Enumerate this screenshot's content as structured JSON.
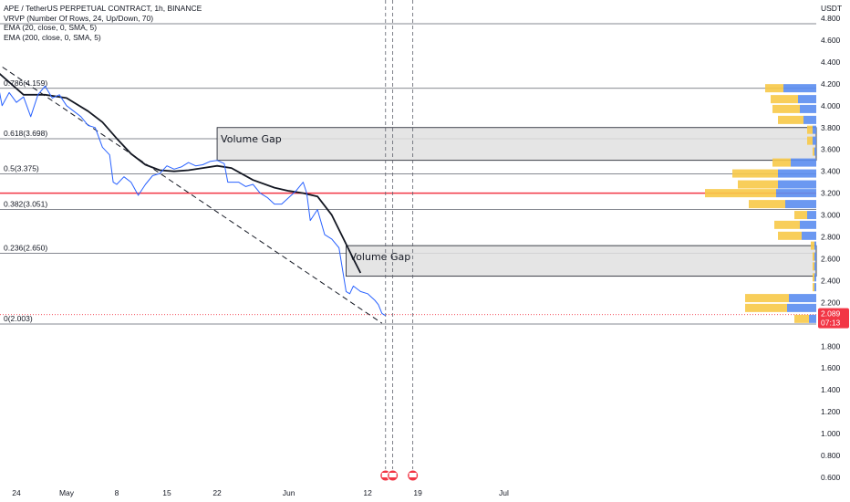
{
  "legend": {
    "line0": "APE / TetherUS PERPETUAL CONTRACT, 1h, BINANCE",
    "line1": "VRVP (Number Of Rows, 24, Up/Down, 70)",
    "line2": "EMA (20, close, 0, SMA, 5)",
    "line3": "EMA (200, close, 0, SMA, 5)"
  },
  "currency": "USDT",
  "price_tag": {
    "price": "2.089",
    "countdown": "07:13",
    "color": "#f23645"
  },
  "chart_data": {
    "type": "line",
    "title": "APE / TetherUS PERPETUAL CONTRACT, 1h, BINANCE",
    "y_ticks": [
      "4.800",
      "4.600",
      "4.400",
      "4.200",
      "4.000",
      "3.800",
      "3.600",
      "3.400",
      "3.200",
      "3.000",
      "2.800",
      "2.600",
      "2.400",
      "2.200",
      "2.000",
      "1.800",
      "1.600",
      "1.400",
      "1.200",
      "1.000",
      "0.800",
      "0.600"
    ],
    "y_tick_values": [
      4.8,
      4.6,
      4.4,
      4.2,
      4.0,
      3.8,
      3.6,
      3.4,
      3.2,
      3.0,
      2.8,
      2.6,
      2.4,
      2.2,
      2.0,
      1.8,
      1.6,
      1.4,
      1.2,
      1.0,
      0.8,
      0.6
    ],
    "ylim": [
      0.6,
      4.85
    ],
    "x_ticks": [
      "24",
      "May",
      "8",
      "15",
      "22",
      "Jun",
      "12",
      "19",
      "Jul"
    ],
    "x_tick_days": [
      -7,
      0,
      7,
      14,
      21,
      31,
      42,
      49,
      61
    ],
    "xlim": [
      -10,
      92
    ],
    "fib_levels": [
      {
        "label": "0.786(4.159)",
        "value": 4.159
      },
      {
        "label": "0.618(3.698)",
        "value": 3.698
      },
      {
        "label": "0.5(3.375)",
        "value": 3.375
      },
      {
        "label": "0.382(3.051)",
        "value": 3.051
      },
      {
        "label": "0.236(2.650)",
        "value": 2.65
      },
      {
        "label": "0(2.003)",
        "value": 2.003
      }
    ],
    "extra_hline": 4.75,
    "red_line": 3.2,
    "current_price": 2.089,
    "volume_gaps": [
      {
        "label": "Volume Gap",
        "day_start": 21,
        "top": 3.8,
        "bottom": 3.5
      },
      {
        "label": "Volume Gap",
        "day_start": 39,
        "top": 2.72,
        "bottom": 2.44
      }
    ],
    "event_days": [
      44.5,
      45.5,
      48.3
    ],
    "trendline": [
      {
        "day": -10,
        "price": 4.4
      },
      {
        "day": 44,
        "price": 2.01
      }
    ],
    "series": [
      {
        "name": "EMA (20, close, 0, SMA, 5)",
        "color": "#131722",
        "points": [
          [
            -10,
            4.33
          ],
          [
            -6,
            4.1
          ],
          [
            -3,
            4.1
          ],
          [
            0,
            4.07
          ],
          [
            3,
            3.95
          ],
          [
            5,
            3.85
          ],
          [
            7,
            3.7
          ],
          [
            9,
            3.56
          ],
          [
            11,
            3.46
          ],
          [
            13,
            3.41
          ],
          [
            15,
            3.4
          ],
          [
            17,
            3.41
          ],
          [
            19,
            3.43
          ],
          [
            21,
            3.45
          ],
          [
            23,
            3.43
          ],
          [
            26,
            3.32
          ],
          [
            29,
            3.25
          ],
          [
            31,
            3.22
          ],
          [
            33,
            3.2
          ],
          [
            35,
            3.17
          ],
          [
            37,
            3.0
          ],
          [
            38.5,
            2.8
          ],
          [
            40,
            2.6
          ],
          [
            41,
            2.47
          ]
        ]
      },
      {
        "name": "price",
        "color": "#2962ff",
        "points": [
          [
            -10,
            4.35
          ],
          [
            -9,
            4.0
          ],
          [
            -8,
            4.12
          ],
          [
            -7,
            4.03
          ],
          [
            -6,
            4.08
          ],
          [
            -5,
            3.9
          ],
          [
            -4,
            4.1
          ],
          [
            -3,
            4.18
          ],
          [
            -2,
            4.07
          ],
          [
            -1,
            4.1
          ],
          [
            0,
            4.0
          ],
          [
            1,
            3.95
          ],
          [
            2,
            3.9
          ],
          [
            3,
            3.82
          ],
          [
            4,
            3.8
          ],
          [
            5,
            3.62
          ],
          [
            6,
            3.55
          ],
          [
            6.5,
            3.3
          ],
          [
            7,
            3.28
          ],
          [
            8,
            3.35
          ],
          [
            9,
            3.3
          ],
          [
            10,
            3.18
          ],
          [
            11,
            3.28
          ],
          [
            12,
            3.36
          ],
          [
            13,
            3.38
          ],
          [
            14,
            3.45
          ],
          [
            15,
            3.42
          ],
          [
            16,
            3.44
          ],
          [
            17,
            3.48
          ],
          [
            18,
            3.45
          ],
          [
            19,
            3.46
          ],
          [
            20,
            3.49
          ],
          [
            21,
            3.5
          ],
          [
            22,
            3.47
          ],
          [
            22.5,
            3.3
          ],
          [
            23,
            3.3
          ],
          [
            24,
            3.3
          ],
          [
            25,
            3.26
          ],
          [
            26,
            3.28
          ],
          [
            27,
            3.2
          ],
          [
            28,
            3.16
          ],
          [
            29,
            3.1
          ],
          [
            30,
            3.1
          ],
          [
            31,
            3.16
          ],
          [
            32,
            3.22
          ],
          [
            33,
            3.3
          ],
          [
            33.5,
            3.2
          ],
          [
            34,
            2.95
          ],
          [
            35,
            3.05
          ],
          [
            36,
            2.82
          ],
          [
            37,
            2.78
          ],
          [
            38,
            2.7
          ],
          [
            38.5,
            2.5
          ],
          [
            39,
            2.3
          ],
          [
            39.5,
            2.28
          ],
          [
            40,
            2.35
          ],
          [
            41,
            2.3
          ],
          [
            42,
            2.28
          ],
          [
            43,
            2.22
          ],
          [
            43.5,
            2.18
          ],
          [
            44,
            2.1
          ],
          [
            44.5,
            2.08
          ]
        ]
      }
    ],
    "volume_profile": [
      {
        "price": 4.16,
        "up": 20,
        "down": 36
      },
      {
        "price": 4.06,
        "up": 30,
        "down": 20
      },
      {
        "price": 3.97,
        "up": 30,
        "down": 18
      },
      {
        "price": 3.87,
        "up": 28,
        "down": 14
      },
      {
        "price": 3.78,
        "up": 6,
        "down": 4
      },
      {
        "price": 3.68,
        "up": 6,
        "down": 4
      },
      {
        "price": 3.58,
        "up": 2,
        "down": 2
      },
      {
        "price": 3.48,
        "up": 20,
        "down": 28
      },
      {
        "price": 3.38,
        "up": 50,
        "down": 42
      },
      {
        "price": 3.28,
        "up": 44,
        "down": 42
      },
      {
        "price": 3.2,
        "up": 78,
        "down": 44
      },
      {
        "price": 3.1,
        "up": 40,
        "down": 34
      },
      {
        "price": 3.0,
        "up": 14,
        "down": 10
      },
      {
        "price": 2.91,
        "up": 28,
        "down": 18
      },
      {
        "price": 2.81,
        "up": 26,
        "down": 16
      },
      {
        "price": 2.72,
        "up": 4,
        "down": 2
      },
      {
        "price": 2.62,
        "up": 2,
        "down": 2
      },
      {
        "price": 2.53,
        "up": 2,
        "down": 2
      },
      {
        "price": 2.43,
        "up": 2,
        "down": 2
      },
      {
        "price": 2.34,
        "up": 2,
        "down": 2
      },
      {
        "price": 2.24,
        "up": 48,
        "down": 30
      },
      {
        "price": 2.15,
        "up": 46,
        "down": 32
      },
      {
        "price": 2.05,
        "up": 16,
        "down": 8
      }
    ],
    "colors": {
      "fib_line": "#5d606b",
      "volume_gap_fill": "#e0e0e0",
      "volume_up": "#f7c948",
      "volume_down": "#5b8def",
      "red_line": "#f23645",
      "trendline": "#131722"
    }
  }
}
